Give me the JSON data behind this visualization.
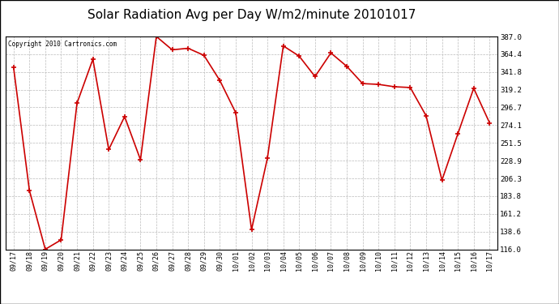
{
  "title": "Solar Radiation Avg per Day W/m2/minute 20101017",
  "copyright_text": "Copyright 2010 Cartronics.com",
  "line_color": "#cc0000",
  "marker_color": "#cc0000",
  "bg_color": "#ffffff",
  "plot_bg_color": "#ffffff",
  "grid_color": "#bbbbbb",
  "title_fontsize": 11,
  "labels": [
    "09/17",
    "09/18",
    "09/19",
    "09/20",
    "09/21",
    "09/22",
    "09/23",
    "09/24",
    "09/25",
    "09/26",
    "09/27",
    "09/28",
    "09/29",
    "09/30",
    "10/01",
    "10/02",
    "10/03",
    "10/04",
    "10/05",
    "10/06",
    "10/07",
    "10/08",
    "10/09",
    "10/10",
    "10/11",
    "10/12",
    "10/13",
    "10/14",
    "10/15",
    "10/16",
    "10/17"
  ],
  "values": [
    348.0,
    191.0,
    116.0,
    128.0,
    302.0,
    358.0,
    243.0,
    285.0,
    230.0,
    387.0,
    370.0,
    372.0,
    363.0,
    331.0,
    290.0,
    141.0,
    232.0,
    375.0,
    362.0,
    336.0,
    366.0,
    349.0,
    327.0,
    326.0,
    323.0,
    322.0,
    286.0,
    204.0,
    263.0,
    321.0,
    277.0
  ],
  "ylim_min": 116.0,
  "ylim_max": 387.0,
  "yticks": [
    116.0,
    138.6,
    161.2,
    183.8,
    206.3,
    228.9,
    251.5,
    274.1,
    296.7,
    319.2,
    341.8,
    364.4,
    387.0
  ]
}
